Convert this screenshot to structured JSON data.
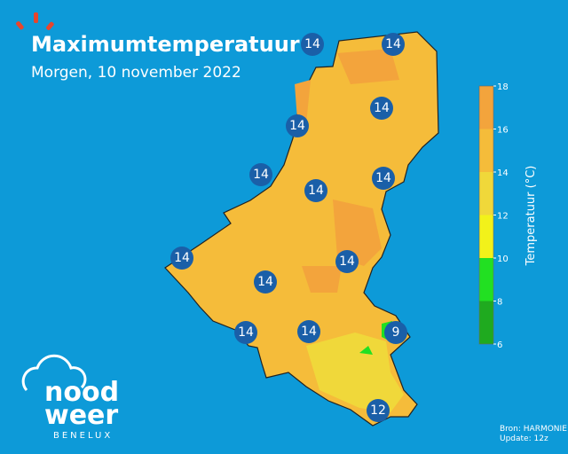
{
  "header": {
    "title": "Maximumtemperatuur",
    "subtitle": "Morgen, 10 november 2022"
  },
  "stations": [
    14,
    14,
    14,
    14,
    14,
    14,
    14,
    14,
    14,
    14,
    14,
    14,
    9,
    12
  ],
  "colorbar": {
    "label": "Temperatuur (°C)",
    "ticks": [
      6,
      8,
      10,
      12,
      14,
      16,
      18
    ],
    "colors": [
      "#1faa1f",
      "#22e022",
      "#f2f21a",
      "#f0d83a",
      "#f5bc3a",
      "#f3a43c"
    ]
  },
  "logo": {
    "line1": "nood",
    "line2": "weer",
    "line3": "BENELUX"
  },
  "source": {
    "line1": "Bron: HARMONIE",
    "line2": "Update: 12z"
  }
}
